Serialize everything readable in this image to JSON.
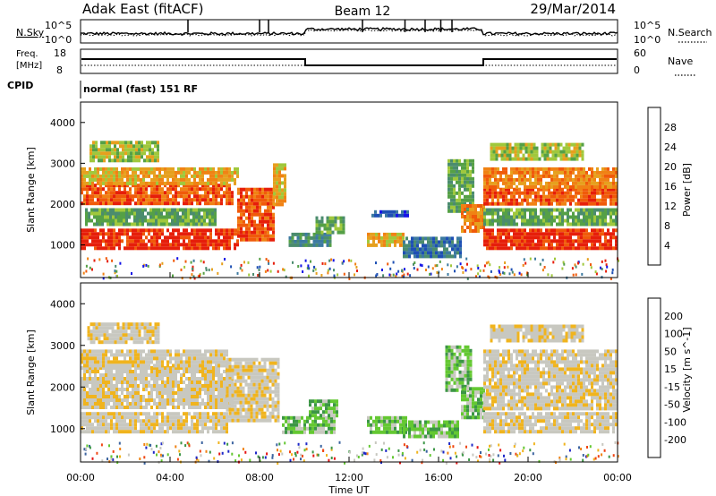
{
  "header": {
    "station": "Adak East (fitACF)",
    "beam": "Beam 12",
    "date": "29/Mar/2014"
  },
  "noise_panel": {
    "left_label": "N.Sky",
    "right_label": "N.Search",
    "left_ticks": [
      "10^5",
      "10^0"
    ],
    "right_ticks": [
      "10^5",
      "10^0"
    ]
  },
  "freq_panel": {
    "left_label_1": "Freq.",
    "left_label_2": "[MHz]",
    "right_label": "Nave",
    "left_ticks": [
      "18",
      "8"
    ],
    "right_ticks": [
      "60",
      "0"
    ],
    "cpid_label": "CPID",
    "program": "normal (fast) 151 RF"
  },
  "colors": {
    "power_scale": [
      "#1414e6",
      "#1e50b4",
      "#3c7aa0",
      "#4b8c6e",
      "#55a046",
      "#a0c83c",
      "#e6a01e",
      "#f08214",
      "#f05a0a",
      "#e61e0a"
    ],
    "velocity_scale": [
      "#e61414",
      "#f04614",
      "#f08214",
      "#f0b41e",
      "#c8c8c0",
      "#c8c8c0",
      "#64c832",
      "#3c9646",
      "#3c64a0",
      "#1e28c8"
    ]
  },
  "chart_data": [
    {
      "type": "heatmap",
      "name": "power",
      "ylabel": "Slant Range [km]",
      "yticks": [
        "4000",
        "3000",
        "2000",
        "1000"
      ],
      "ylim": [
        200,
        4500
      ],
      "xlim": [
        0,
        24
      ],
      "colorbar_label": "Power [dB]",
      "colorbar_ticks": [
        "28",
        "24",
        "20",
        "16",
        "12",
        "8",
        "4"
      ],
      "regions": [
        {
          "t0": 0.0,
          "t1": 7.0,
          "r0": 950,
          "r1": 1400,
          "level": 9
        },
        {
          "t0": 7.0,
          "t1": 8.6,
          "r0": 1150,
          "r1": 2400,
          "level": 8
        },
        {
          "t0": 0.0,
          "t1": 6.8,
          "r0": 2000,
          "r1": 2500,
          "level": 8
        },
        {
          "t0": 0.0,
          "t1": 7.0,
          "r0": 2500,
          "r1": 2900,
          "level": 6
        },
        {
          "t0": 0.2,
          "t1": 6.0,
          "r0": 1500,
          "r1": 1900,
          "level": 4
        },
        {
          "t0": 0.4,
          "t1": 3.5,
          "r0": 3100,
          "r1": 3550,
          "level": 5
        },
        {
          "t0": 8.6,
          "t1": 9.2,
          "r0": 2000,
          "r1": 3000,
          "level": 6
        },
        {
          "t0": 9.3,
          "t1": 11.2,
          "r0": 1000,
          "r1": 1300,
          "level": 3
        },
        {
          "t0": 10.5,
          "t1": 11.8,
          "r0": 1300,
          "r1": 1700,
          "level": 4
        },
        {
          "t0": 12.8,
          "t1": 14.4,
          "r0": 1000,
          "r1": 1300,
          "level": 6
        },
        {
          "t0": 14.4,
          "t1": 17.0,
          "r0": 700,
          "r1": 1200,
          "level": 2
        },
        {
          "t0": 13.0,
          "t1": 14.6,
          "r0": 1700,
          "r1": 1850,
          "level": 1
        },
        {
          "t0": 16.4,
          "t1": 17.6,
          "r0": 1800,
          "r1": 3100,
          "level": 4
        },
        {
          "t0": 17.0,
          "t1": 18.0,
          "r0": 1300,
          "r1": 2000,
          "level": 7
        },
        {
          "t0": 18.0,
          "t1": 24.0,
          "r0": 950,
          "r1": 1400,
          "level": 9
        },
        {
          "t0": 18.0,
          "t1": 24.0,
          "r0": 2000,
          "r1": 2400,
          "level": 8
        },
        {
          "t0": 18.0,
          "t1": 24.0,
          "r0": 2400,
          "r1": 2900,
          "level": 7
        },
        {
          "t0": 18.3,
          "t1": 22.5,
          "r0": 3100,
          "r1": 3500,
          "level": 5
        },
        {
          "t0": 18.0,
          "t1": 24.0,
          "r0": 1500,
          "r1": 1900,
          "level": 4
        }
      ]
    },
    {
      "type": "heatmap",
      "name": "velocity",
      "ylabel": "Slant Range [km]",
      "xlabel": "Time UT",
      "yticks": [
        "4000",
        "3000",
        "2000",
        "1000"
      ],
      "ylim": [
        200,
        4500
      ],
      "xlim": [
        0,
        24
      ],
      "xticks": [
        "00:00",
        "04:00",
        "08:00",
        "12:00",
        "16:00",
        "20:00",
        "00:00"
      ],
      "colorbar_label": "Velocity [m s^-1]",
      "colorbar_ticks": [
        "200",
        "100",
        "50",
        "15",
        "-15",
        "-50",
        "-100",
        "-200"
      ],
      "regions": [
        {
          "t0": 0.0,
          "t1": 6.5,
          "r0": 950,
          "r1": 1400,
          "level": 4
        },
        {
          "t0": 0.0,
          "t1": 6.8,
          "r0": 1500,
          "r1": 2500,
          "level": 4
        },
        {
          "t0": 0.0,
          "t1": 6.5,
          "r0": 2500,
          "r1": 2900,
          "level": 4
        },
        {
          "t0": 0.3,
          "t1": 3.5,
          "r0": 3100,
          "r1": 3550,
          "level": 4
        },
        {
          "t0": 6.5,
          "t1": 8.8,
          "r0": 1200,
          "r1": 2700,
          "level": 4
        },
        {
          "t0": 9.0,
          "t1": 11.3,
          "r0": 900,
          "r1": 1300,
          "level": 6
        },
        {
          "t0": 10.2,
          "t1": 11.5,
          "r0": 1300,
          "r1": 1700,
          "level": 6
        },
        {
          "t0": 12.8,
          "t1": 14.6,
          "r0": 950,
          "r1": 1300,
          "level": 6
        },
        {
          "t0": 14.4,
          "t1": 16.8,
          "r0": 800,
          "r1": 1200,
          "level": 6
        },
        {
          "t0": 16.3,
          "t1": 17.5,
          "r0": 1900,
          "r1": 3000,
          "level": 6
        },
        {
          "t0": 17.0,
          "t1": 18.0,
          "r0": 1300,
          "r1": 2000,
          "level": 6
        },
        {
          "t0": 18.0,
          "t1": 24.0,
          "r0": 950,
          "r1": 1400,
          "level": 4
        },
        {
          "t0": 18.0,
          "t1": 24.0,
          "r0": 1500,
          "r1": 2900,
          "level": 4
        },
        {
          "t0": 18.3,
          "t1": 22.5,
          "r0": 3100,
          "r1": 3500,
          "level": 4
        }
      ]
    }
  ]
}
